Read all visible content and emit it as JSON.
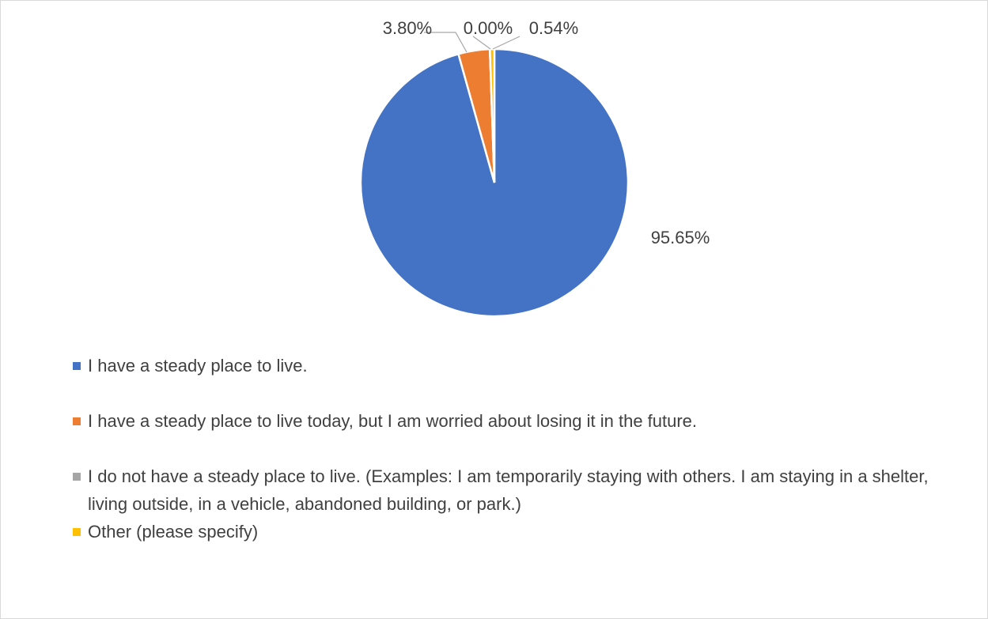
{
  "chart_data": {
    "type": "pie",
    "categories": [
      "I have a steady place to live.",
      "I have a steady place to live today, but I am worried about losing it in the future.",
      "I do not have a steady place to live. (Examples: I am temporarily staying with others. I am staying in a shelter, living outside, in a vehicle, abandoned building, or park.)",
      "Other (please specify)"
    ],
    "values": [
      95.65,
      3.8,
      0,
      0.54
    ],
    "value_labels": [
      "95.65%",
      "3.80%",
      "0.00%",
      "0.54%"
    ],
    "colors": [
      "#4472c4",
      "#ed7d31",
      "#a5a5a5",
      "#ffc000"
    ],
    "legend": "bottom"
  }
}
